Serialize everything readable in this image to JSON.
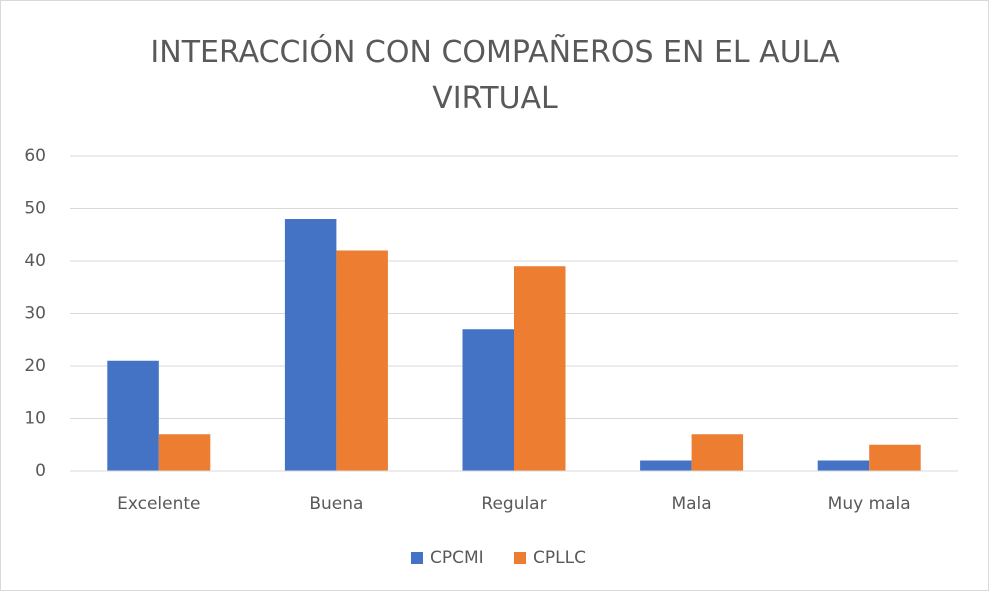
{
  "chart_data": {
    "type": "bar",
    "title": "INTERACCIÓN CON COMPAÑEROS EN EL AULA VIRTUAL",
    "categories": [
      "Excelente",
      "Buena",
      "Regular",
      "Mala",
      "Muy mala"
    ],
    "series": [
      {
        "name": "CPCMI",
        "color": "#4472c4",
        "values": [
          21,
          48,
          27,
          2,
          2
        ]
      },
      {
        "name": "CPLLC",
        "color": "#ed7d31",
        "values": [
          7,
          42,
          39,
          7,
          5
        ]
      }
    ],
    "ylim": [
      0,
      60
    ],
    "yticks": [
      0,
      10,
      20,
      30,
      40,
      50,
      60
    ],
    "grid": true,
    "legend": "bottom"
  }
}
